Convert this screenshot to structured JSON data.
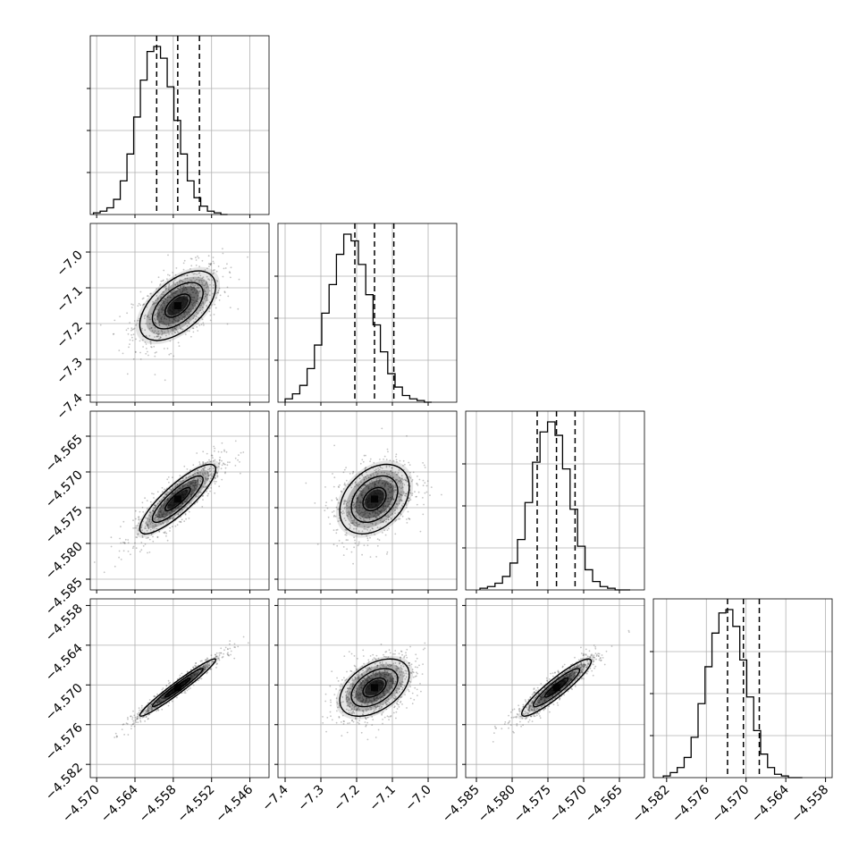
{
  "chart_data": {
    "type": "corner",
    "title": "",
    "parameters": [
      {
        "index": 0,
        "range": [
          -4.571,
          -4.543
        ],
        "ticks": [
          -4.57,
          -4.564,
          -4.558,
          -4.552,
          -4.546
        ],
        "tick_labels": [
          "−4.570",
          "−4.564",
          "−4.558",
          "−4.552",
          "−4.546"
        ],
        "quantiles": [
          -4.5606,
          -4.5573,
          -4.5539
        ]
      },
      {
        "index": 1,
        "range": [
          -7.42,
          -6.92
        ],
        "ticks": [
          -7.4,
          -7.3,
          -7.2,
          -7.1,
          -7.0
        ],
        "tick_labels": [
          "−7.4",
          "−7.3",
          "−7.2",
          "−7.1",
          "−7.0"
        ],
        "quantiles": [
          -7.205,
          -7.15,
          -7.096
        ]
      },
      {
        "index": 2,
        "range": [
          -4.5865,
          -4.5615
        ],
        "ticks": [
          -4.585,
          -4.58,
          -4.575,
          -4.57,
          -4.565
        ],
        "tick_labels": [
          "−4.585",
          "−4.580",
          "−4.575",
          "−4.570",
          "−4.565"
        ],
        "quantiles": [
          -4.5765,
          -4.5738,
          -4.5712
        ]
      },
      {
        "index": 3,
        "range": [
          -4.584,
          -4.557
        ],
        "ticks": [
          -4.582,
          -4.576,
          -4.57,
          -4.564,
          -4.558
        ],
        "tick_labels": [
          "−4.582",
          "−4.576",
          "−4.570",
          "−4.564",
          "−4.558"
        ],
        "quantiles": [
          -4.5728,
          -4.5704,
          -4.568
        ]
      }
    ],
    "histograms": [
      {
        "param": 0,
        "bin_start": -4.5705,
        "bin_width": 0.00105,
        "counts": [
          1,
          2,
          4,
          9,
          20,
          36,
          58,
          80,
          97,
          100,
          93,
          76,
          56,
          36,
          20,
          10,
          5,
          2,
          1,
          0
        ]
      },
      {
        "param": 1,
        "bin_start": -7.4,
        "bin_width": 0.0205,
        "counts": [
          2,
          5,
          10,
          20,
          34,
          53,
          70,
          88,
          100,
          96,
          82,
          64,
          46,
          30,
          17,
          9,
          4,
          2,
          1,
          0
        ]
      },
      {
        "param": 2,
        "bin_start": -4.5845,
        "bin_width": 0.00105,
        "counts": [
          1,
          2,
          4,
          8,
          16,
          30,
          52,
          76,
          94,
          100,
          92,
          72,
          48,
          26,
          12,
          5,
          2,
          1,
          0,
          0
        ]
      },
      {
        "param": 3,
        "bin_start": -4.5825,
        "bin_width": 0.00105,
        "counts": [
          1,
          3,
          6,
          12,
          24,
          44,
          66,
          86,
          98,
          100,
          90,
          70,
          48,
          28,
          14,
          6,
          2,
          1,
          0,
          0
        ]
      }
    ],
    "pairs": [
      {
        "x": 0,
        "y": 1,
        "center": [
          -4.5573,
          -7.15
        ],
        "sd": [
          0.0033,
          0.054
        ],
        "rho": 0.55
      },
      {
        "x": 0,
        "y": 2,
        "center": [
          -4.5573,
          -4.5738
        ],
        "sd": [
          0.0033,
          0.0027
        ],
        "rho": 0.85
      },
      {
        "x": 1,
        "y": 2,
        "center": [
          -7.15,
          -4.5738
        ],
        "sd": [
          0.054,
          0.0027
        ],
        "rho": 0.35
      },
      {
        "x": 0,
        "y": 3,
        "center": [
          -4.5573,
          -4.5704
        ],
        "sd": [
          0.0033,
          0.0024
        ],
        "rho": 0.97
      },
      {
        "x": 1,
        "y": 3,
        "center": [
          -7.15,
          -4.5704
        ],
        "sd": [
          0.054,
          0.0024
        ],
        "rho": 0.45
      },
      {
        "x": 2,
        "y": 3,
        "center": [
          -4.5738,
          -4.5704
        ],
        "sd": [
          0.0027,
          0.0024
        ],
        "rho": 0.92
      }
    ],
    "contour_levels_sigma": [
      0.5,
      1.0,
      1.5,
      2.0
    ],
    "grid": true,
    "colors": {
      "line": "#000000",
      "scatter": "#555555",
      "grid": "#b0b0b0",
      "density": "#000000"
    }
  }
}
